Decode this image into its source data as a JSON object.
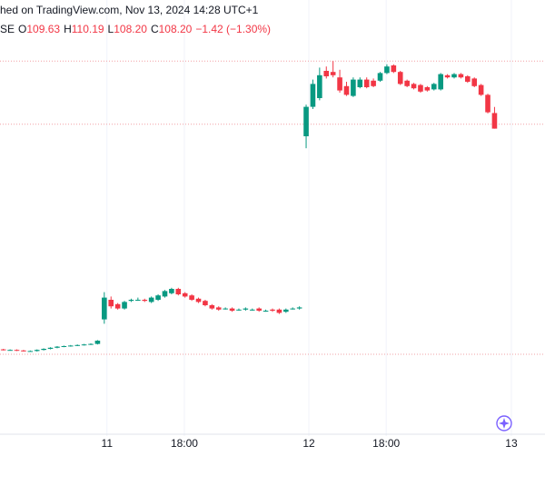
{
  "chart_data": {
    "type": "candlestick",
    "header": {
      "source": "hed on TradingView.com, Nov 13, 2024 14:28 UTC+1",
      "symbol": "SE",
      "ohlc": [
        {
          "label": "O",
          "value": "109.63"
        },
        {
          "label": "H",
          "value": "110.19"
        },
        {
          "label": "L",
          "value": "108.20"
        },
        {
          "label": "C",
          "value": "108.20"
        }
      ],
      "change": "−1.42 (−1.30%)"
    },
    "up_color": "#089981",
    "down_color": "#f23645",
    "xlim": [
      -0.5,
      80.5
    ],
    "ylim": [
      80,
      120
    ],
    "xticks": [
      {
        "value": 15.4,
        "label": "11"
      },
      {
        "value": 26.9,
        "label": "18:00"
      },
      {
        "value": 45.4,
        "label": "12"
      },
      {
        "value": 56.9,
        "label": "18:00"
      },
      {
        "value": 75.5,
        "label": "13"
      }
    ],
    "price_lines": [
      114.4,
      108.6,
      87.5
    ],
    "series": [
      {
        "open": [
          87.95,
          87.9,
          87.9,
          87.85,
          87.8,
          87.8,
          87.9,
          88.0,
          88.1,
          88.2,
          88.25,
          88.3,
          88.35,
          88.4,
          88.45,
          90.7,
          92.5,
          92.1,
          91.7,
          92.4,
          92.5,
          92.5,
          92.3,
          92.5,
          92.8,
          93.1,
          93.5,
          93.1,
          92.9,
          92.6,
          92.4,
          92.0,
          91.8,
          91.7,
          91.7,
          91.6,
          91.6,
          91.6,
          91.7,
          91.5,
          91.6,
          91.6,
          91.4,
          91.7,
          91.7,
          107.5,
          110.2,
          111.0,
          113.5,
          113.4,
          112.9,
          112.1,
          111.2,
          112.0,
          112.7,
          112.6,
          112.6,
          113.3,
          114.0,
          113.4,
          112.6,
          112.3,
          112.2,
          112.0,
          111.8,
          111.8,
          113.1,
          112.9,
          113.2,
          113.0,
          112.8,
          112.2,
          111.3,
          109.63
        ],
        "high": [
          88.0,
          87.95,
          87.95,
          87.9,
          87.85,
          87.95,
          88.05,
          88.15,
          88.25,
          88.3,
          88.35,
          88.4,
          88.45,
          88.5,
          88.8,
          93.2,
          92.8,
          92.2,
          92.4,
          92.6,
          92.7,
          92.6,
          92.8,
          93.0,
          93.4,
          93.6,
          93.6,
          93.2,
          93.0,
          92.7,
          92.5,
          92.1,
          91.9,
          91.8,
          91.8,
          91.7,
          91.8,
          91.7,
          91.8,
          91.6,
          91.7,
          91.7,
          91.7,
          91.8,
          91.9,
          110.4,
          112.7,
          113.8,
          113.9,
          114.4,
          113.6,
          112.5,
          112.9,
          112.9,
          112.9,
          112.8,
          113.4,
          114.1,
          114.1,
          113.5,
          112.7,
          112.4,
          112.3,
          112.1,
          112.4,
          113.3,
          113.2,
          113.3,
          113.3,
          113.1,
          112.9,
          112.3,
          111.4,
          110.19
        ],
        "low": [
          87.85,
          87.85,
          87.8,
          87.75,
          87.75,
          87.75,
          87.85,
          87.95,
          88.05,
          88.15,
          88.2,
          88.25,
          88.3,
          88.35,
          88.4,
          90.3,
          91.7,
          91.6,
          91.6,
          92.3,
          92.4,
          92.3,
          92.2,
          92.4,
          92.7,
          93.0,
          92.9,
          92.7,
          92.4,
          92.2,
          91.9,
          91.6,
          91.5,
          91.6,
          91.4,
          91.5,
          91.5,
          91.5,
          91.4,
          91.4,
          91.4,
          91.2,
          91.3,
          91.6,
          91.6,
          106.4,
          110.0,
          110.8,
          112.8,
          112.9,
          111.5,
          111.2,
          111.1,
          111.9,
          111.9,
          112.0,
          112.5,
          113.2,
          113.3,
          112.2,
          112.0,
          111.8,
          111.5,
          111.6,
          111.7,
          111.7,
          112.8,
          112.8,
          112.8,
          112.4,
          112.0,
          111.2,
          109.6,
          108.2
        ],
        "close": [
          87.9,
          87.9,
          87.85,
          87.8,
          87.8,
          87.9,
          88.0,
          88.1,
          88.2,
          88.25,
          88.3,
          88.35,
          88.4,
          88.45,
          88.75,
          92.7,
          91.9,
          91.7,
          92.3,
          92.5,
          92.5,
          92.4,
          92.7,
          92.9,
          93.3,
          93.5,
          93.0,
          92.8,
          92.5,
          92.3,
          92.0,
          91.7,
          91.6,
          91.7,
          91.5,
          91.6,
          91.7,
          91.6,
          91.5,
          91.5,
          91.5,
          91.3,
          91.6,
          91.7,
          91.8,
          110.2,
          112.3,
          113.1,
          113.0,
          113.1,
          111.7,
          111.3,
          112.7,
          112.7,
          112.0,
          112.1,
          113.3,
          113.9,
          113.4,
          112.3,
          112.1,
          111.9,
          111.6,
          111.7,
          112.3,
          113.2,
          112.9,
          113.2,
          112.9,
          112.5,
          112.1,
          111.3,
          109.7,
          108.2
        ]
      }
    ]
  }
}
